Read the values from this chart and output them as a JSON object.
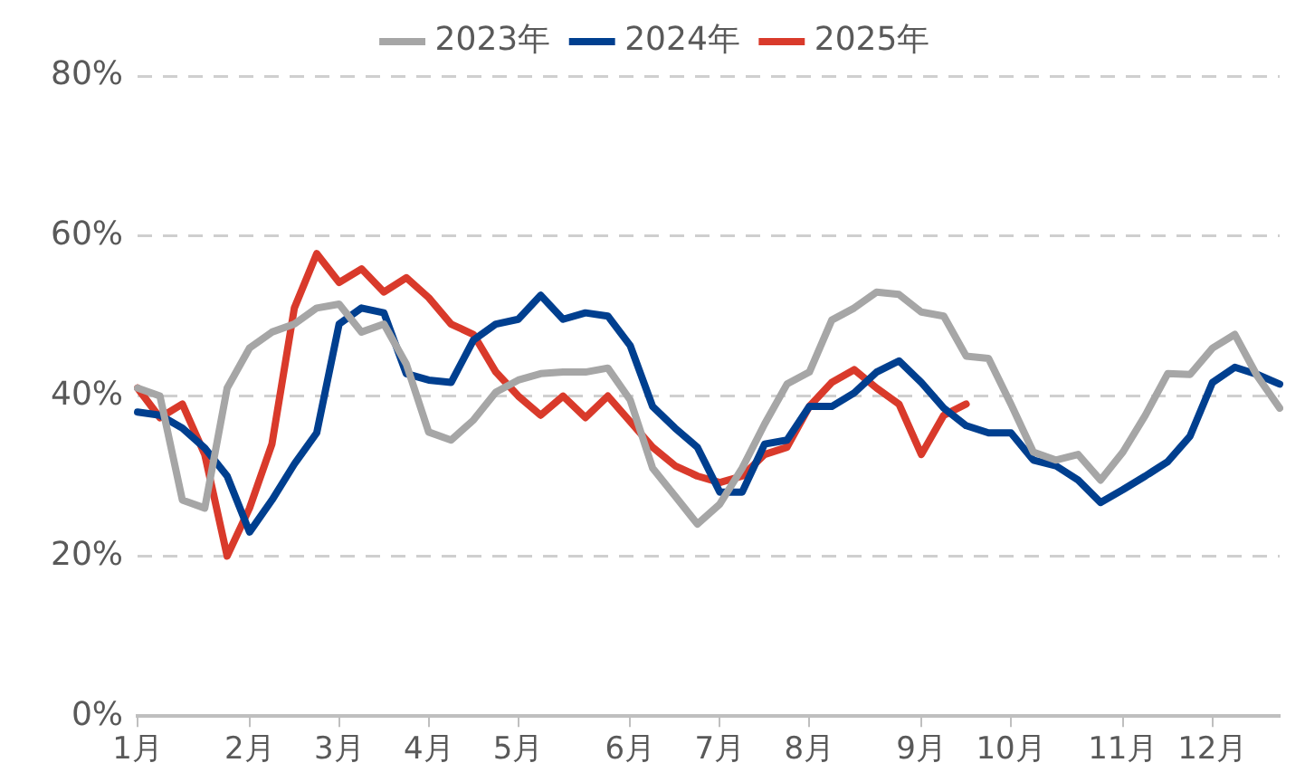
{
  "chart_data": {
    "type": "line",
    "categories": [
      "1月",
      null,
      null,
      null,
      null,
      "2月",
      null,
      null,
      null,
      "3月",
      null,
      null,
      null,
      "4月",
      null,
      null,
      null,
      "5月",
      null,
      null,
      null,
      null,
      "6月",
      null,
      null,
      null,
      "7月",
      null,
      null,
      null,
      "8月",
      null,
      null,
      null,
      null,
      "9月",
      null,
      null,
      null,
      "10月",
      null,
      null,
      null,
      null,
      "11月",
      null,
      null,
      null,
      "12月",
      null,
      null,
      null
    ],
    "series": [
      {
        "name": "2023年",
        "color": "#a6a6a6",
        "values": [
          41,
          40,
          27,
          26,
          41,
          46,
          48,
          49,
          51,
          51.5,
          48,
          49,
          44,
          35.5,
          34.5,
          37,
          40.5,
          42,
          42.8,
          43,
          43,
          43.5,
          39.5,
          31,
          27.5,
          24,
          26.5,
          31,
          36.5,
          41.5,
          43,
          49.5,
          51,
          53,
          52.7,
          50.5,
          50,
          45,
          44.7,
          39,
          33,
          32,
          32.7,
          29.5,
          33,
          37.6,
          42.8,
          42.7,
          46,
          47.7,
          42.5,
          38.5
        ]
      },
      {
        "name": "2024年",
        "color": "#003f8f",
        "values": [
          38,
          37.6,
          36,
          33.5,
          30,
          23,
          27,
          31.5,
          35.4,
          49,
          51,
          50.4,
          42.8,
          42,
          41.7,
          47,
          49,
          49.6,
          52.6,
          49.6,
          50.4,
          50,
          46.3,
          38.7,
          36,
          33.6,
          28,
          28,
          34,
          34.5,
          38.7,
          38.7,
          40.4,
          43,
          44.4,
          41.7,
          38.5,
          36.3,
          35.4,
          35.4,
          32,
          31.3,
          29.5,
          26.7,
          28.3,
          30,
          31.8,
          35,
          41.7,
          43.6,
          42.7,
          41.5
        ]
      },
      {
        "name": "2025年",
        "color": "#d93a2b",
        "values": [
          41,
          37.3,
          39,
          32.7,
          20,
          26,
          34,
          51,
          57.8,
          54.2,
          55.9,
          53,
          54.8,
          52.3,
          49,
          47.7,
          43,
          40,
          37.6,
          40,
          37.3,
          40,
          36.8,
          33.6,
          31.3,
          30,
          29.2,
          30,
          32.7,
          33.6,
          38.7,
          41.7,
          43.3,
          41,
          39,
          32.7,
          37.6,
          39,
          null,
          null,
          null,
          null,
          null,
          null,
          null,
          null,
          null,
          null,
          null,
          null,
          null,
          null
        ]
      }
    ],
    "ylim": [
      0,
      80
    ],
    "yticks": [
      {
        "value": 0,
        "label": "0%"
      },
      {
        "value": 20,
        "label": "20%"
      },
      {
        "value": 40,
        "label": "40%"
      },
      {
        "value": 60,
        "label": "60%"
      },
      {
        "value": 80,
        "label": "80%"
      }
    ],
    "grid": "y",
    "legend": "top",
    "marker": "none",
    "line_style": "solid"
  }
}
